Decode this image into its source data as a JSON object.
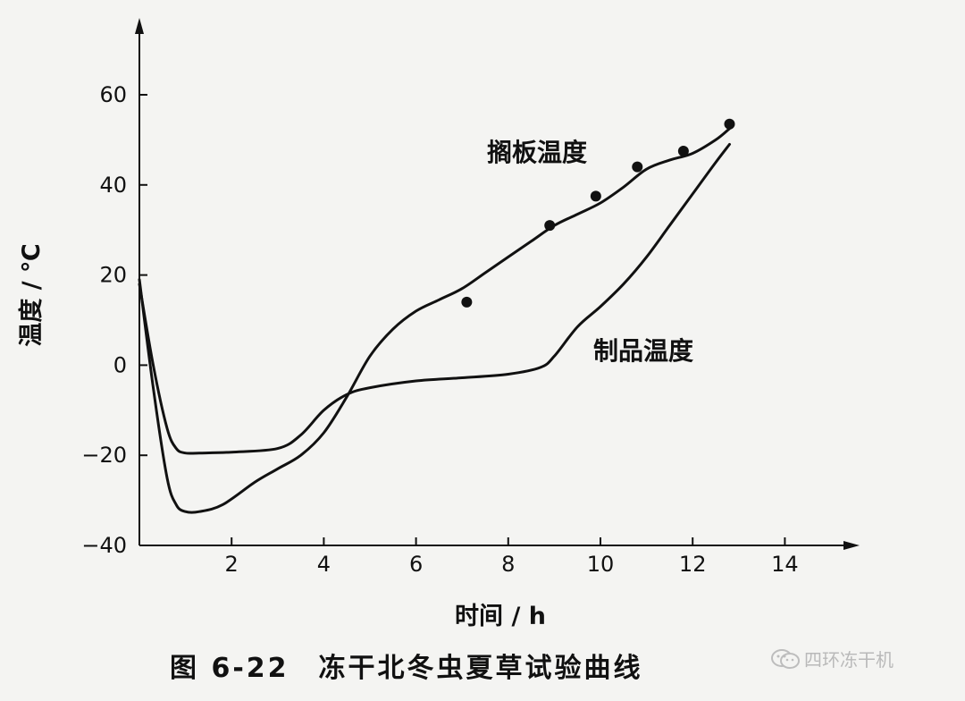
{
  "chart_data": {
    "type": "line",
    "xlabel": "时间 / h",
    "ylabel": "温度 / ℃",
    "xlim": [
      0,
      15
    ],
    "ylim": [
      -40,
      70
    ],
    "x_ticks": [
      2,
      4,
      6,
      8,
      10,
      12,
      14
    ],
    "y_ticks": [
      -40,
      -20,
      0,
      20,
      40,
      60
    ],
    "x_tick_labels": [
      "2",
      "4",
      "6",
      "8",
      "10",
      "12",
      "14"
    ],
    "y_tick_labels": [
      "−40",
      "−20",
      "0",
      "20",
      "40",
      "60"
    ],
    "grid": false,
    "series": [
      {
        "name": "搁板温度",
        "x": [
          0,
          0.3,
          0.6,
          0.8,
          1.0,
          1.3,
          1.8,
          2.5,
          3.0,
          3.5,
          4.0,
          4.5,
          5.0,
          5.5,
          6.0,
          6.5,
          7.0,
          7.5,
          8.0,
          8.5,
          9.0,
          9.5,
          10.0,
          10.5,
          11.0,
          11.5,
          12.0,
          12.5,
          12.8
        ],
        "y": [
          19,
          -5,
          -25,
          -31,
          -32.5,
          -32.5,
          -31,
          -26,
          -23,
          -20,
          -15,
          -7,
          2,
          8,
          12,
          14.5,
          17,
          20.5,
          24,
          27.5,
          31,
          33.5,
          36,
          39.5,
          43.5,
          45.5,
          47,
          50,
          52.5
        ],
        "markers": {
          "x": [
            7.1,
            8.9,
            9.9,
            10.8,
            11.8,
            12.8
          ],
          "y": [
            14,
            31,
            37.5,
            44,
            47.5,
            53.5
          ]
        }
      },
      {
        "name": "制品温度",
        "x": [
          0,
          0.3,
          0.6,
          0.8,
          1.0,
          1.3,
          2.0,
          3.0,
          3.5,
          4.0,
          4.5,
          5.0,
          6.0,
          7.0,
          8.0,
          8.7,
          9.0,
          9.5,
          10.0,
          10.5,
          11.0,
          11.5,
          12.0,
          12.5,
          12.8
        ],
        "y": [
          18,
          0,
          -14,
          -18.5,
          -19.5,
          -19.5,
          -19.3,
          -18.5,
          -15.5,
          -10,
          -6.5,
          -5,
          -3.5,
          -2.8,
          -2,
          -0.5,
          2,
          8.5,
          13,
          18,
          24,
          31,
          38,
          45,
          49
        ]
      }
    ]
  },
  "caption": "图 6-22　冻干北冬虫夏草试验曲线",
  "watermark": "四环冻干机"
}
